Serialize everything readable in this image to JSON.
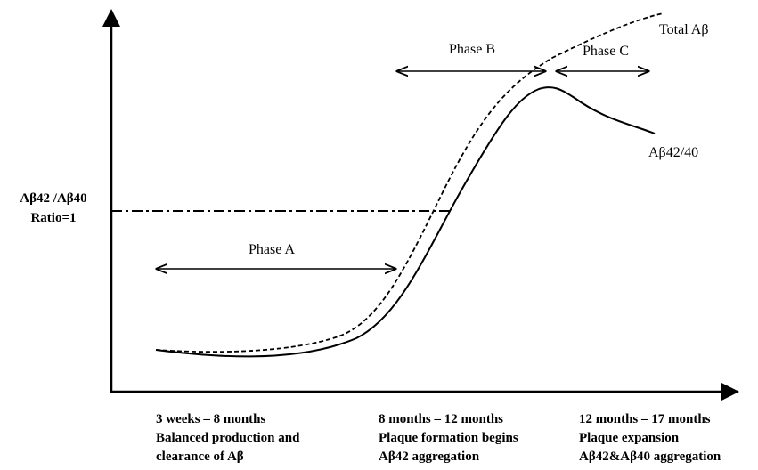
{
  "curves": [
    {
      "label": "Total Aβ"
    },
    {
      "label": "Aβ42/40"
    }
  ],
  "phases": [
    {
      "label": "Phase A"
    },
    {
      "label": "Phase B"
    },
    {
      "label": "Phase C"
    }
  ],
  "reference_line": {
    "label": [
      "Aβ42 /Aβ40",
      "Ratio=1"
    ]
  },
  "periods": [
    {
      "lines": [
        "3 weeks – 8 months",
        "Balanced production and",
        "clearance of Aβ"
      ]
    },
    {
      "lines": [
        "8 months – 12 months",
        "Plaque formation begins",
        "Aβ42 aggregation"
      ]
    },
    {
      "lines": [
        "12 months – 17 months",
        "Plaque expansion",
        "Aβ42&Aβ40 aggregation"
      ]
    }
  ]
}
